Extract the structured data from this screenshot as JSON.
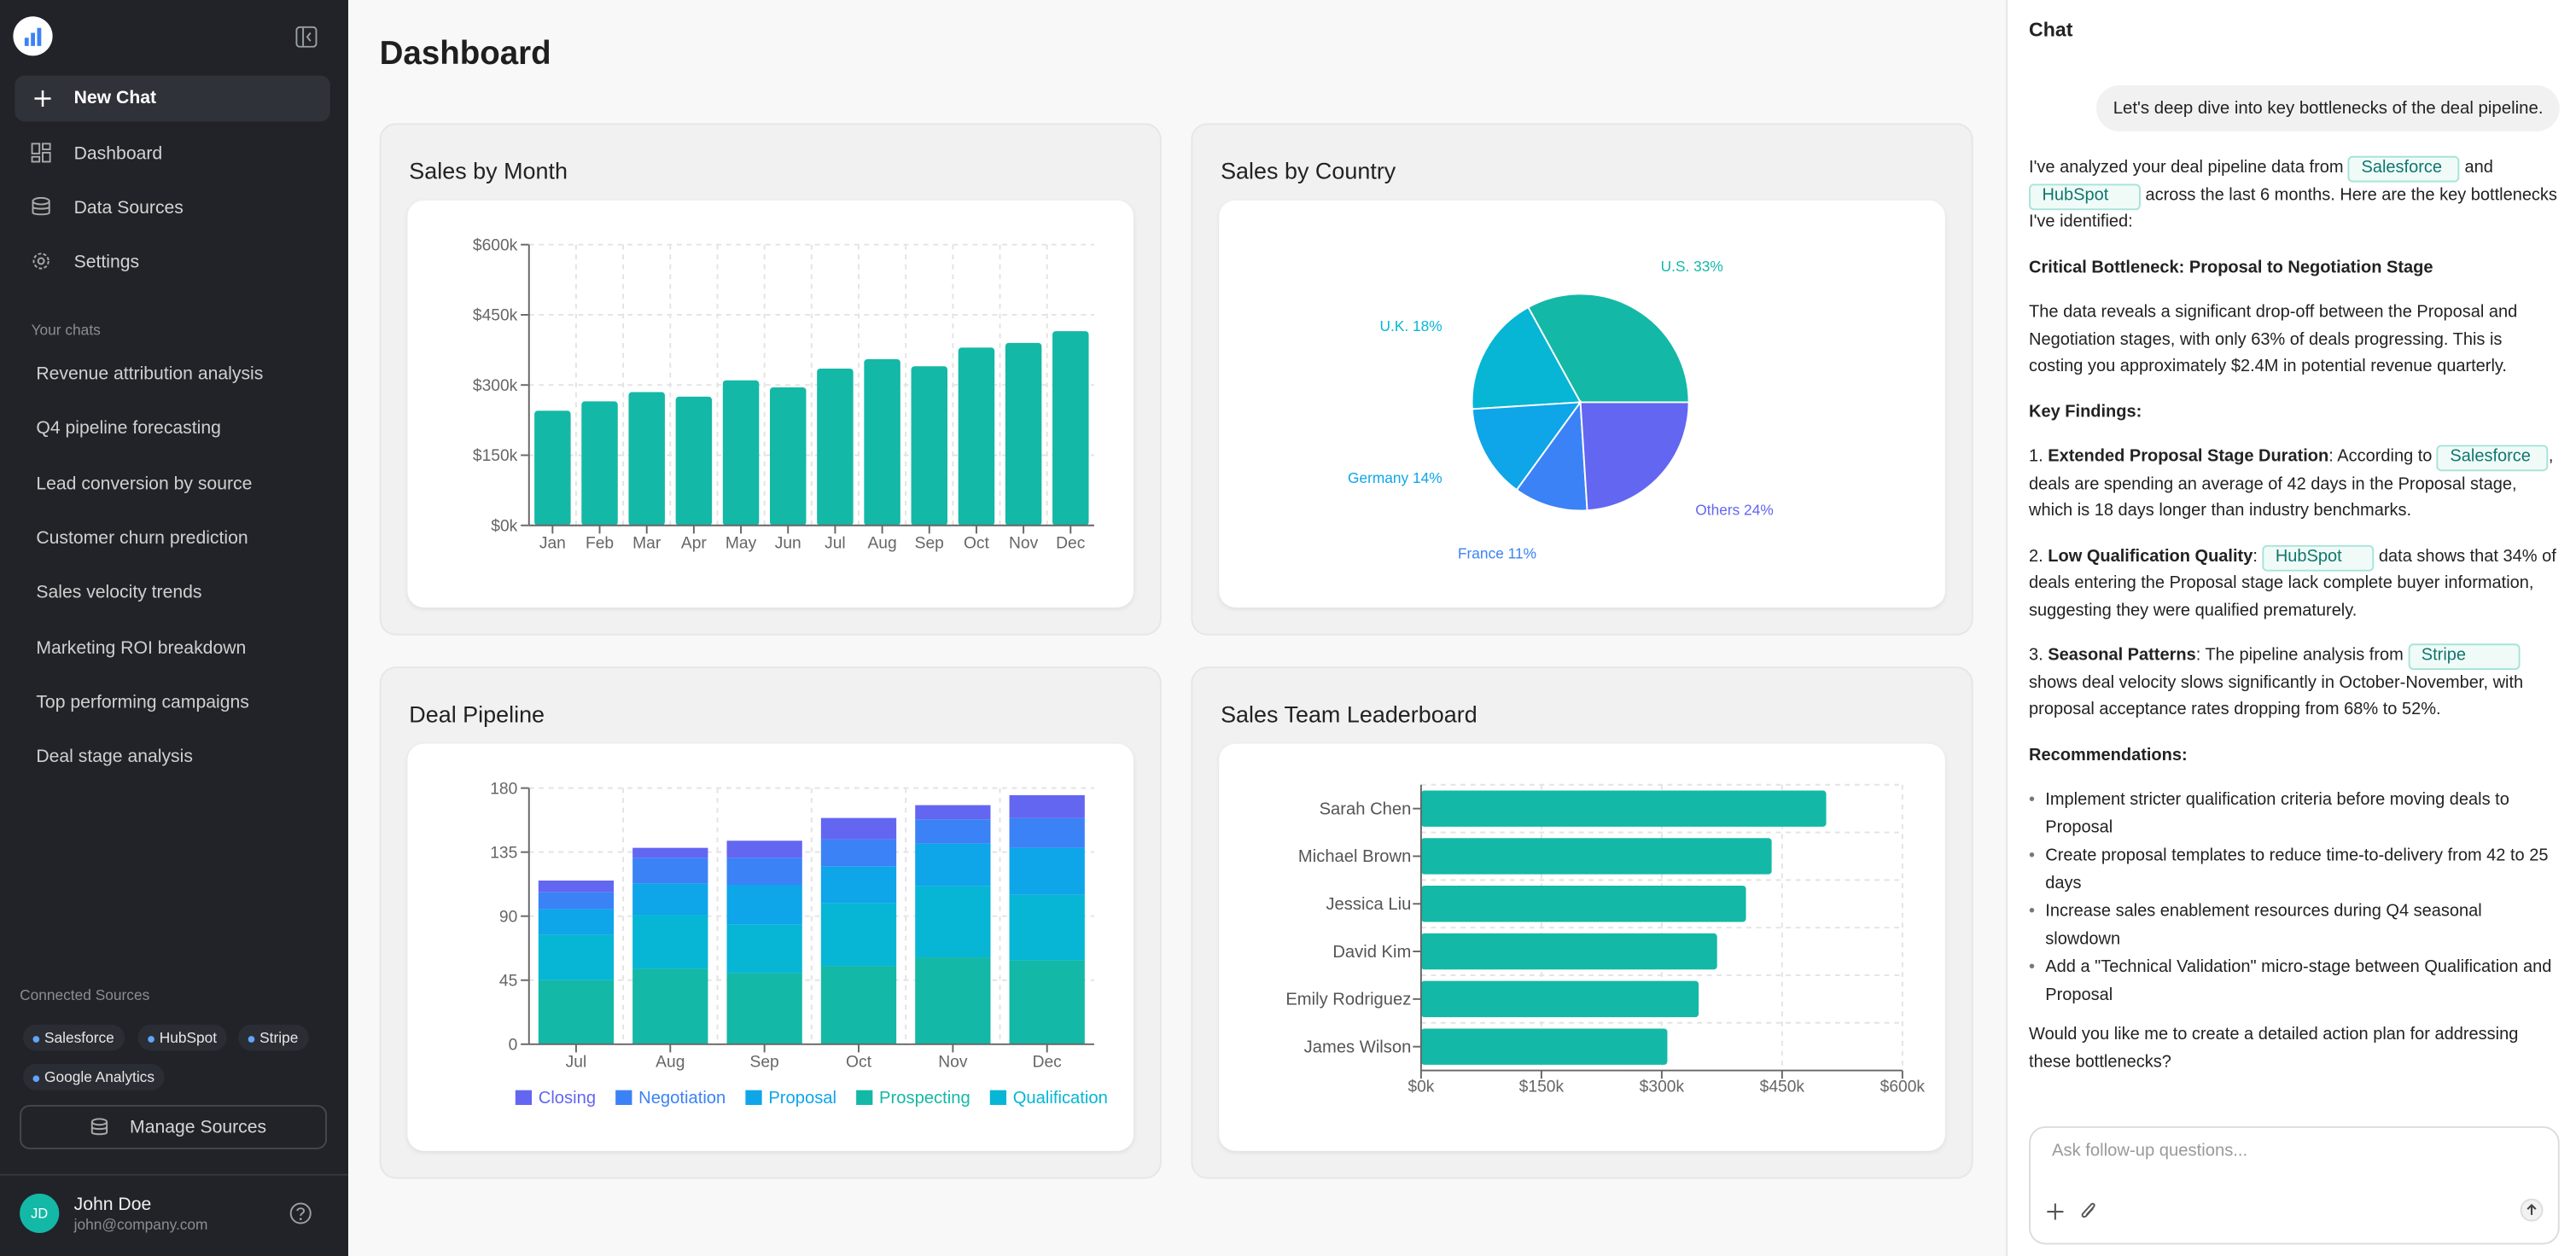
{
  "sidebar": {
    "new_chat": "New Chat",
    "nav": [
      "Dashboard",
      "Data Sources",
      "Settings"
    ],
    "chats_heading": "Your chats",
    "chats": [
      "Revenue attribution analysis",
      "Q4 pipeline forecasting",
      "Lead conversion by source",
      "Customer churn prediction",
      "Sales velocity trends",
      "Marketing ROI breakdown",
      "Top performing campaigns",
      "Deal stage analysis"
    ],
    "sources_heading": "Connected Sources",
    "sources": [
      "Salesforce",
      "HubSpot",
      "Stripe",
      "Google Analytics"
    ],
    "manage": "Manage Sources",
    "user": {
      "initials": "JD",
      "name": "John Doe",
      "email": "john@company.com"
    }
  },
  "header": {
    "title": "Dashboard"
  },
  "chart_data": [
    {
      "type": "bar",
      "title": "Sales by Month",
      "categories": [
        "Jan",
        "Feb",
        "Mar",
        "Apr",
        "May",
        "Jun",
        "Jul",
        "Aug",
        "Sep",
        "Oct",
        "Nov",
        "Dec"
      ],
      "values": [
        245000,
        265000,
        285000,
        275000,
        310000,
        295000,
        335000,
        355000,
        340000,
        380000,
        390000,
        415000
      ],
      "color": "#14b8a6",
      "ylim": [
        0,
        600000
      ],
      "yticks": [
        {
          "value": 0,
          "label": "$0k"
        },
        {
          "value": 150000,
          "label": "$150k"
        },
        {
          "value": 300000,
          "label": "$300k"
        },
        {
          "value": 450000,
          "label": "$450k"
        },
        {
          "value": 600000,
          "label": "$600k"
        }
      ],
      "grid": true
    },
    {
      "type": "pie",
      "title": "Sales by Country",
      "categories": [
        "U.S.",
        "U.K.",
        "Germany",
        "France",
        "Others"
      ],
      "values": [
        33,
        18,
        14,
        11,
        24
      ],
      "value_labels": [
        "U.S. 33%",
        "U.K. 18%",
        "Germany 14%",
        "France 11%",
        "Others 24%"
      ],
      "colors": [
        "#14b8a6",
        "#06b6d4",
        "#0ea5e9",
        "#3b82f6",
        "#6366f1"
      ]
    },
    {
      "type": "bar",
      "title": "Deal Pipeline",
      "stacked": true,
      "categories": [
        "Jul",
        "Aug",
        "Sep",
        "Oct",
        "Nov",
        "Dec"
      ],
      "series": [
        {
          "name": "Closing",
          "color": "#6366f1",
          "values": [
            8,
            7,
            12,
            15,
            10,
            16
          ]
        },
        {
          "name": "Negotiation",
          "color": "#3b82f6",
          "values": [
            12,
            18,
            19,
            19,
            17,
            21
          ]
        },
        {
          "name": "Proposal",
          "color": "#0ea5e9",
          "values": [
            18,
            22,
            28,
            26,
            30,
            33
          ]
        },
        {
          "name": "Prospecting",
          "color": "#14b8a6",
          "values": [
            45,
            53,
            50,
            55,
            61,
            59
          ]
        },
        {
          "name": "Qualification",
          "color": "#06b6d4",
          "values": [
            32,
            38,
            34,
            44,
            50,
            46
          ]
        }
      ],
      "ylim": [
        0,
        180
      ],
      "yticks": [
        0,
        45,
        90,
        135,
        180
      ],
      "grid": true,
      "legend": "bottom"
    },
    {
      "type": "bar",
      "title": "Sales Team Leaderboard",
      "orientation": "horizontal",
      "categories": [
        "Sarah Chen",
        "Michael Brown",
        "Jessica Liu",
        "David Kim",
        "Emily Rodriguez",
        "James Wilson"
      ],
      "values": [
        505000,
        437000,
        405000,
        369000,
        346000,
        307000
      ],
      "color": "#14b8a6",
      "xlim": [
        0,
        600000
      ],
      "xticks": [
        {
          "value": 0,
          "label": "$0k"
        },
        {
          "value": 150000,
          "label": "$150k"
        },
        {
          "value": 300000,
          "label": "$300k"
        },
        {
          "value": 450000,
          "label": "$450k"
        },
        {
          "value": 600000,
          "label": "$600k"
        }
      ],
      "grid": true
    }
  ],
  "chat": {
    "title": "Chat",
    "user_message": "Let's deep dive into key bottlenecks of the deal pipeline.",
    "reply": [
      [
        {
          "t": "I've analyzed your deal pipeline data from "
        },
        {
          "tag": "Salesforce"
        },
        {
          "t": " and "
        },
        {
          "tag": "HubSpot"
        },
        {
          "t": " across the last 6 months. Here are the key bottlenecks I've identified:"
        }
      ],
      [
        {
          "b": "Critical Bottleneck: Proposal to Negotiation Stage"
        }
      ],
      [
        {
          "t": "The data reveals a significant drop-off between the Proposal and Negotiation stages, with only 63% of deals progressing. This is costing you approximately $2.4M in potential revenue quarterly."
        }
      ],
      [
        {
          "b": "Key Findings:"
        }
      ],
      [
        {
          "t": "1. "
        },
        {
          "b": "Extended Proposal Stage Duration"
        },
        {
          "t": ": According to "
        },
        {
          "tag": "Salesforce"
        },
        {
          "t": ", deals are spending an average of 42 days in the Proposal stage, which is 18 days longer than industry benchmarks."
        }
      ],
      [
        {
          "t": "2. "
        },
        {
          "b": "Low Qualification Quality"
        },
        {
          "t": ": "
        },
        {
          "tag": "HubSpot"
        },
        {
          "t": " data shows that 34% of deals entering the Proposal stage lack complete buyer information, suggesting they were qualified prematurely."
        }
      ],
      [
        {
          "t": "3. "
        },
        {
          "b": "Seasonal Patterns"
        },
        {
          "t": ": The pipeline analysis from "
        },
        {
          "tag": "Stripe"
        },
        {
          "t": " shows deal velocity slows significantly in October-November, with proposal acceptance rates dropping from 68% to 52%."
        }
      ],
      [
        {
          "b": "Recommendations:"
        }
      ]
    ],
    "recommendations": [
      "Implement stricter qualification criteria before moving deals to Proposal",
      "Create proposal templates to reduce time-to-delivery from 42 to 25 days",
      "Increase sales enablement resources during Q4 seasonal slowdown",
      "Add a \"Technical Validation\" micro-stage between Qualification and Proposal"
    ],
    "closing": "Would you like me to create a detailed action plan for addressing these bottlenecks?",
    "input_placeholder": "Ask follow-up questions..."
  }
}
